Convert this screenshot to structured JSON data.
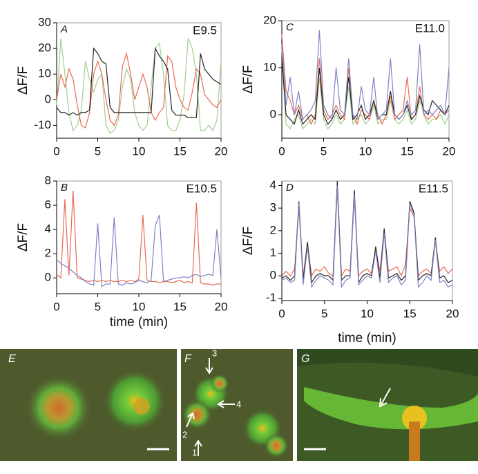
{
  "chart_data": [
    {
      "type": "line",
      "panel": "A",
      "annotation": "E9.5",
      "y_label": "ΔF/F",
      "x": [
        0,
        0.5,
        1,
        1.5,
        2,
        2.5,
        3,
        3.5,
        4,
        4.5,
        5,
        5.5,
        6,
        6.5,
        7,
        7.5,
        8,
        8.5,
        9,
        9.5,
        10,
        10.5,
        11,
        11.5,
        12,
        12.5,
        13,
        13.5,
        14,
        14.5,
        15,
        15.5,
        16,
        16.5,
        17,
        17.5,
        18,
        18.5,
        19,
        19.5,
        20
      ],
      "xlim": [
        0,
        20
      ],
      "xticks": [
        0,
        5,
        10,
        15,
        20
      ],
      "ylim": [
        -15,
        30
      ],
      "yticks": [
        -10,
        0,
        10,
        20,
        30
      ],
      "series": [
        {
          "color": "#9fd08e",
          "values": [
            -2,
            24,
            10,
            -5,
            -12,
            -10,
            -4,
            15,
            8,
            3,
            8,
            10,
            -10,
            -13,
            -12,
            -8,
            5,
            12,
            8,
            -5,
            -10,
            -12,
            -10,
            5,
            20,
            22,
            10,
            -10,
            -12,
            -12,
            -8,
            2,
            24,
            20,
            10,
            -12,
            -12,
            -10,
            -12,
            -8,
            15
          ]
        },
        {
          "color": "#e86a50",
          "values": [
            0,
            10,
            5,
            12,
            8,
            -2,
            -10,
            -11,
            -5,
            10,
            15,
            10,
            0,
            -8,
            -10,
            -6,
            13,
            18,
            10,
            0,
            5,
            10,
            5,
            -5,
            -8,
            -5,
            -3,
            17,
            15,
            5,
            0,
            -3,
            -4,
            3,
            12,
            10,
            2,
            0,
            -2,
            -3,
            0
          ]
        },
        {
          "color": "#222222",
          "values": [
            -3,
            -5,
            -5,
            -6,
            -5,
            -6,
            -5,
            -5,
            -4,
            20,
            18,
            15,
            14,
            -3,
            -5,
            -5,
            -5,
            -5,
            -5,
            -5,
            -5,
            -5,
            -5,
            -5,
            20,
            17,
            15,
            12,
            -4,
            -6,
            -6,
            -6,
            -7,
            -7,
            -7,
            18,
            12,
            10,
            8,
            7,
            6
          ]
        }
      ]
    },
    {
      "type": "line",
      "panel": "C",
      "annotation": "E11.0",
      "y_label": "ΔF/F",
      "x": [
        0,
        0.5,
        1,
        1.5,
        2,
        2.5,
        3,
        3.5,
        4,
        4.5,
        5,
        5.5,
        6,
        6.5,
        7,
        7.5,
        8,
        8.5,
        9,
        9.5,
        10,
        10.5,
        11,
        11.5,
        12,
        12.5,
        13,
        13.5,
        14,
        14.5,
        15,
        15.5,
        16,
        16.5,
        17,
        17.5,
        18,
        18.5,
        19,
        19.5,
        20
      ],
      "xlim": [
        0,
        20
      ],
      "xticks": [
        0,
        5,
        10,
        15,
        20
      ],
      "ylim": [
        -5,
        20
      ],
      "yticks": [
        0,
        10,
        20
      ],
      "series": [
        {
          "color": "#9fd08e",
          "values": [
            14,
            -2,
            -3,
            -1,
            0,
            -3,
            -2,
            -1,
            -2,
            8,
            -1,
            -3,
            -2,
            0,
            -2,
            -1,
            6,
            -2,
            -1,
            0,
            -2,
            -1,
            2,
            -2,
            -1,
            -1,
            3,
            -1,
            -2,
            -1,
            1,
            -2,
            -1,
            3,
            0,
            -2,
            -1,
            -1,
            0,
            -2,
            0
          ]
        },
        {
          "color": "#e86a50",
          "values": [
            17,
            5,
            3,
            0,
            2,
            -1,
            0,
            -2,
            0,
            12,
            1,
            -1,
            0,
            2,
            0,
            -1,
            10,
            0,
            -2,
            1,
            0,
            -1,
            3,
            0,
            -2,
            0,
            4,
            -1,
            0,
            1,
            8,
            -1,
            0,
            6,
            0,
            -1,
            0,
            -1,
            1,
            0,
            1
          ]
        },
        {
          "color": "#222222",
          "values": [
            12,
            0,
            -1,
            -2,
            1,
            -2,
            -1,
            0,
            -1,
            10,
            0,
            -2,
            -1,
            1,
            -1,
            0,
            8,
            -1,
            0,
            2,
            -1,
            0,
            3,
            -1,
            0,
            0,
            5,
            0,
            -1,
            0,
            2,
            -1,
            0,
            4,
            1,
            0,
            3,
            2,
            1,
            0,
            2
          ]
        },
        {
          "color": "#7d82c4",
          "values": [
            15,
            2,
            8,
            0,
            5,
            -1,
            0,
            1,
            3,
            18,
            2,
            0,
            -1,
            10,
            1,
            0,
            12,
            0,
            -1,
            6,
            1,
            0,
            8,
            -1,
            0,
            1,
            12,
            0,
            -1,
            0,
            3,
            0,
            1,
            15,
            0,
            1,
            0,
            1,
            2,
            0,
            10
          ]
        }
      ]
    },
    {
      "type": "line",
      "panel": "B",
      "annotation": "E10.5",
      "y_label": "ΔF/F",
      "x_label": "time (min)",
      "x": [
        0,
        0.5,
        1,
        1.5,
        2,
        2.5,
        3,
        3.5,
        4,
        4.5,
        5,
        5.5,
        6,
        6.5,
        7,
        7.5,
        8,
        8.5,
        9,
        9.5,
        10,
        10.5,
        11,
        11.5,
        12,
        12.5,
        13,
        13.5,
        14,
        14.5,
        15,
        15.5,
        16,
        16.5,
        17,
        17.5,
        18,
        18.5,
        19,
        19.5,
        20
      ],
      "xlim": [
        0,
        20
      ],
      "xticks": [
        0,
        5,
        10,
        15,
        20
      ],
      "ylim": [
        -1.3,
        8
      ],
      "yticks": [
        0,
        2,
        4,
        6,
        8
      ],
      "series": [
        {
          "color": "#e86a50",
          "values": [
            0.3,
            0,
            6.5,
            0.2,
            7.2,
            0,
            -0.1,
            -0.2,
            -0.3,
            -0.2,
            -0.3,
            -0.2,
            -0.3,
            -0.2,
            -0.3,
            -0.3,
            -0.2,
            -0.3,
            -0.2,
            -0.3,
            -0.1,
            5.2,
            -0.2,
            -0.3,
            -0.3,
            -0.4,
            -0.3,
            -0.3,
            -0.4,
            -0.3,
            -0.2,
            -0.4,
            -0.3,
            -0.4,
            6.2,
            -0.4,
            -0.5,
            -0.5,
            -0.6,
            -0.5,
            -0.5
          ]
        },
        {
          "color": "#7d82c4",
          "values": [
            1.5,
            1.2,
            1.0,
            0.8,
            0.5,
            0.2,
            0,
            -0.3,
            -0.5,
            -0.6,
            4.5,
            -0.7,
            -0.5,
            -0.5,
            5.0,
            -0.5,
            -0.6,
            -0.4,
            -0.5,
            -0.4,
            -0.2,
            -0.3,
            -0.4,
            -0.2,
            4.3,
            5.2,
            -0.3,
            -0.2,
            -0.1,
            0,
            0,
            0.1,
            0,
            0.2,
            0.3,
            0.1,
            0.2,
            0.3,
            0.2,
            4.0,
            0
          ]
        }
      ]
    },
    {
      "type": "line",
      "panel": "D",
      "annotation": "E11.5",
      "y_label": "ΔF/F",
      "x_label": "time (min)",
      "x": [
        0,
        0.5,
        1,
        1.5,
        2,
        2.5,
        3,
        3.5,
        4,
        4.5,
        5,
        5.5,
        6,
        6.5,
        7,
        7.5,
        8,
        8.5,
        9,
        9.5,
        10,
        10.5,
        11,
        11.5,
        12,
        12.5,
        13,
        13.5,
        14,
        14.5,
        15,
        15.5,
        16,
        16.5,
        17,
        17.5,
        18,
        18.5,
        19,
        19.5,
        20
      ],
      "xlim": [
        0,
        20
      ],
      "xticks": [
        0,
        5,
        10,
        15,
        20
      ],
      "ylim": [
        -1.1,
        4.2
      ],
      "yticks": [
        -1,
        0,
        1,
        2,
        3,
        4
      ],
      "series": [
        {
          "color": "#e86a50",
          "values": [
            0,
            0.2,
            0,
            0.3,
            3.0,
            0,
            1.4,
            0,
            0.3,
            0.2,
            0.4,
            0.1,
            0,
            3.8,
            0,
            0.3,
            0.2,
            3.5,
            0,
            0.2,
            0.3,
            0.1,
            1.2,
            0.2,
            2.0,
            0.2,
            0.3,
            0.4,
            0,
            0.5,
            3.0,
            2.6,
            0,
            0.2,
            0.3,
            0.1,
            1.5,
            0.2,
            0.4,
            0.1,
            0.3
          ]
        },
        {
          "color": "#222222",
          "values": [
            -0.1,
            0,
            -0.2,
            0,
            3.3,
            -0.2,
            1.5,
            -0.3,
            0,
            0.1,
            0,
            0,
            -0.2,
            4.2,
            -0.2,
            0,
            0,
            3.8,
            -0.3,
            0,
            0.1,
            0,
            1.3,
            -0.1,
            2.1,
            -0.1,
            0,
            0.1,
            -0.2,
            0,
            3.3,
            2.8,
            -0.2,
            0,
            0.1,
            0,
            1.7,
            -0.1,
            0,
            -0.3,
            -0.2
          ]
        },
        {
          "color": "#7d82c4",
          "values": [
            -0.2,
            -0.1,
            -0.3,
            -0.2,
            3.2,
            -0.4,
            1.3,
            -0.5,
            -0.2,
            0,
            -0.1,
            -0.2,
            -0.4,
            4.0,
            -0.5,
            -0.2,
            -0.1,
            3.6,
            -0.4,
            -0.2,
            0,
            -0.1,
            1.1,
            -0.3,
            1.9,
            -0.3,
            -0.1,
            0,
            -0.4,
            -0.2,
            3.2,
            2.7,
            -0.5,
            -0.3,
            0,
            -0.2,
            1.6,
            -0.3,
            -0.2,
            -0.5,
            -0.4
          ]
        }
      ]
    }
  ],
  "images": {
    "E": {
      "label": "E"
    },
    "F": {
      "label": "F",
      "arrows": [
        "1",
        "2",
        "3",
        "4"
      ]
    },
    "G": {
      "label": "G"
    }
  }
}
